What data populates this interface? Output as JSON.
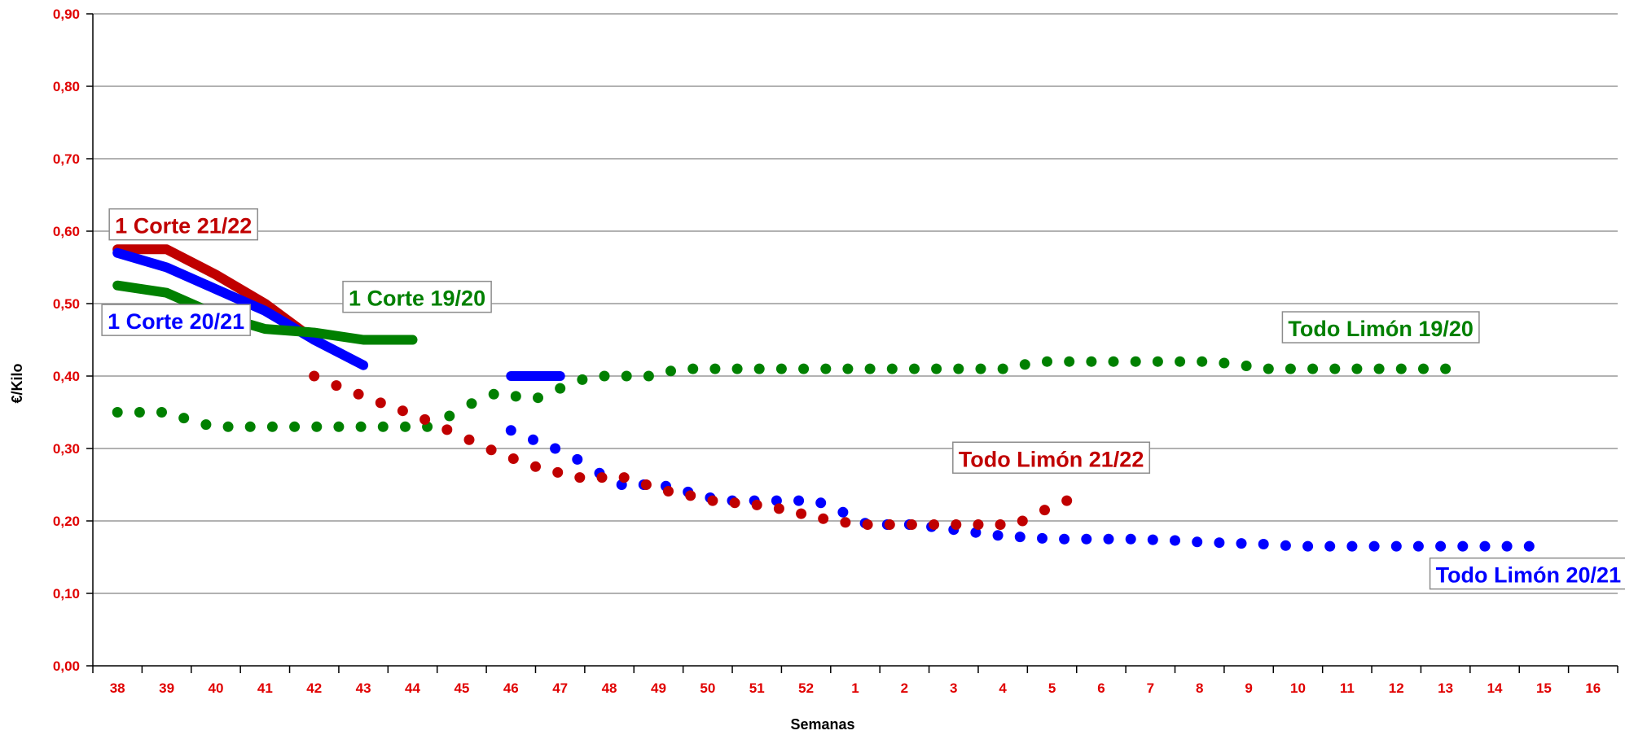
{
  "chart_data": {
    "type": "line",
    "xlabel": "Semanas",
    "ylabel": "€/Kilo",
    "ylim": [
      0,
      0.9
    ],
    "yticks": [
      "0,00",
      "0,10",
      "0,20",
      "0,30",
      "0,40",
      "0,50",
      "0,60",
      "0,70",
      "0,80",
      "0,90"
    ],
    "categories": [
      "38",
      "39",
      "40",
      "41",
      "42",
      "43",
      "44",
      "45",
      "46",
      "47",
      "48",
      "49",
      "50",
      "51",
      "52",
      "1",
      "2",
      "3",
      "4",
      "5",
      "6",
      "7",
      "8",
      "9",
      "10",
      "11",
      "12",
      "13",
      "14",
      "15",
      "16"
    ],
    "grid": true,
    "colors": {
      "tick": "#e00000",
      "grid": "#999999",
      "axis": "#000000"
    },
    "series": [
      {
        "name": "1 Corte 21/22",
        "style": "line",
        "color": "#c00000",
        "x": [
          0,
          1,
          2,
          3,
          4
        ],
        "y": [
          0.575,
          0.575,
          0.54,
          0.5,
          0.45
        ]
      },
      {
        "name": "1 Corte 20/21",
        "style": "line",
        "color": "#0000ff",
        "x": [
          0,
          1,
          2,
          3,
          4,
          5
        ],
        "y": [
          0.57,
          0.55,
          0.52,
          0.49,
          0.45,
          0.415
        ]
      },
      {
        "name": "1 Corte 19/20",
        "style": "line",
        "color": "#008000",
        "x": [
          0,
          1,
          2,
          3,
          4,
          5,
          6
        ],
        "y": [
          0.525,
          0.515,
          0.485,
          0.465,
          0.46,
          0.45,
          0.45
        ]
      },
      {
        "name": "",
        "style": "line",
        "color": "#0000ff",
        "x": [
          8,
          9
        ],
        "y": [
          0.4,
          0.4
        ]
      },
      {
        "name": "Todo Limón 19/20",
        "style": "dots",
        "color": "#008000",
        "x": [
          0,
          0.45,
          0.9,
          1.35,
          1.8,
          2.25,
          2.7,
          3.15,
          3.6,
          4.05,
          4.5,
          4.95,
          5.4,
          5.85,
          6.3,
          6.75,
          7.2,
          7.65,
          8.1,
          8.55,
          9,
          9.45,
          9.9,
          10.35,
          10.8,
          11.25,
          11.7,
          12.15,
          12.6,
          13.05,
          13.5,
          13.95,
          14.4,
          14.85,
          15.3,
          15.75,
          16.2,
          16.65,
          17.1,
          17.55,
          18,
          18.45,
          18.9,
          19.35,
          19.8,
          20.25,
          20.7,
          21.15,
          21.6,
          22.05,
          22.5,
          22.95,
          23.4,
          23.85,
          24.3,
          24.75,
          25.2,
          25.65,
          26.1,
          26.55,
          27
        ],
        "y": [
          0.35,
          0.35,
          0.35,
          0.342,
          0.333,
          0.33,
          0.33,
          0.33,
          0.33,
          0.33,
          0.33,
          0.33,
          0.33,
          0.33,
          0.33,
          0.345,
          0.362,
          0.375,
          0.372,
          0.37,
          0.383,
          0.395,
          0.4,
          0.4,
          0.4,
          0.407,
          0.41,
          0.41,
          0.41,
          0.41,
          0.41,
          0.41,
          0.41,
          0.41,
          0.41,
          0.41,
          0.41,
          0.41,
          0.41,
          0.41,
          0.41,
          0.416,
          0.42,
          0.42,
          0.42,
          0.42,
          0.42,
          0.42,
          0.42,
          0.42,
          0.418,
          0.414,
          0.41,
          0.41,
          0.41,
          0.41,
          0.41,
          0.41,
          0.41,
          0.41,
          0.41
        ]
      },
      {
        "name": "Todo Limón 20/21",
        "style": "dots",
        "color": "#0000ff",
        "x": [
          8,
          8.45,
          8.9,
          9.35,
          9.8,
          10.25,
          10.7,
          11.15,
          11.6,
          12.05,
          12.5,
          12.95,
          13.4,
          13.85,
          14.3,
          14.75,
          15.2,
          15.65,
          16.1,
          16.55,
          17,
          17.45,
          17.9,
          18.35,
          18.8,
          19.25,
          19.7,
          20.15,
          20.6,
          21.05,
          21.5,
          21.95,
          22.4,
          22.85,
          23.3,
          23.75,
          24.2,
          24.65,
          25.1,
          25.55,
          26,
          26.45,
          26.9,
          27.35,
          27.8,
          28.25,
          28.7
        ],
        "y": [
          0.325,
          0.312,
          0.3,
          0.285,
          0.266,
          0.25,
          0.25,
          0.248,
          0.24,
          0.232,
          0.228,
          0.228,
          0.228,
          0.228,
          0.225,
          0.212,
          0.197,
          0.195,
          0.195,
          0.192,
          0.188,
          0.184,
          0.18,
          0.178,
          0.176,
          0.175,
          0.175,
          0.175,
          0.175,
          0.174,
          0.173,
          0.171,
          0.17,
          0.169,
          0.168,
          0.166,
          0.165,
          0.165,
          0.165,
          0.165,
          0.165,
          0.165,
          0.165,
          0.165,
          0.165,
          0.165,
          0.165
        ]
      },
      {
        "name": "Todo Limón 21/22",
        "style": "dots",
        "color": "#c00000",
        "x": [
          4,
          4.45,
          4.9,
          5.35,
          5.8,
          6.25,
          6.7,
          7.15,
          7.6,
          8.05,
          8.5,
          8.95,
          9.4,
          9.85,
          10.3,
          10.75,
          11.2,
          11.65,
          12.1,
          12.55,
          13,
          13.45,
          13.9,
          14.35,
          14.8,
          15.25,
          15.7,
          16.15,
          16.6,
          17.05,
          17.5,
          17.95,
          18.4,
          18.85,
          19.3
        ],
        "y": [
          0.4,
          0.387,
          0.375,
          0.363,
          0.352,
          0.34,
          0.326,
          0.312,
          0.298,
          0.286,
          0.275,
          0.267,
          0.26,
          0.26,
          0.26,
          0.25,
          0.241,
          0.235,
          0.228,
          0.225,
          0.222,
          0.217,
          0.21,
          0.203,
          0.198,
          0.195,
          0.195,
          0.195,
          0.195,
          0.195,
          0.195,
          0.195,
          0.2,
          0.215,
          0.228
        ]
      }
    ],
    "annotations": [
      {
        "text": "1 Corte 21/22",
        "color": "#c00000"
      },
      {
        "text": "1 Corte 20/21",
        "color": "#0000ff"
      },
      {
        "text": "1 Corte 19/20",
        "color": "#008000"
      },
      {
        "text": "Todo Limón 19/20",
        "color": "#008000"
      },
      {
        "text": "Todo Limón 21/22",
        "color": "#c00000"
      },
      {
        "text": "Todo Limón 20/21",
        "color": "#0000ff"
      }
    ]
  }
}
